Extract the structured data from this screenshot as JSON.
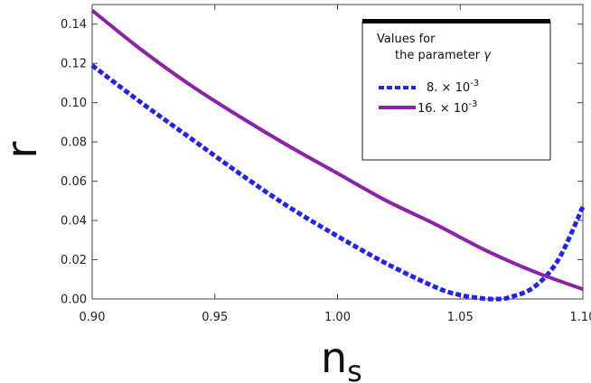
{
  "chart_data": {
    "type": "line",
    "title": "",
    "xlabel": "n",
    "xlabel_sub": "s",
    "ylabel": "r",
    "xlim": [
      0.9,
      1.1
    ],
    "ylim": [
      0.0,
      0.15
    ],
    "xticks": [
      "0.90",
      "0.95",
      "1.00",
      "1.05",
      "1.10"
    ],
    "xtick_values": [
      0.9,
      0.95,
      1.0,
      1.05,
      1.1
    ],
    "yticks": [
      "0.00",
      "0.02",
      "0.04",
      "0.06",
      "0.08",
      "0.10",
      "0.12",
      "0.14"
    ],
    "ytick_values": [
      0.0,
      0.02,
      0.04,
      0.06,
      0.08,
      0.1,
      0.12,
      0.14
    ],
    "legend": {
      "title_line1": "Values for",
      "title_line2": "the parameter",
      "title_symbol": "γ",
      "placement": "top-right"
    },
    "series": [
      {
        "name": "8. × 10^-3",
        "label_main": "8. ×",
        "label_base": "10",
        "label_exp": "-3",
        "style": "dashed",
        "color": "#2222ee",
        "x": [
          0.9,
          0.92,
          0.94,
          0.96,
          0.98,
          1.0,
          1.02,
          1.04,
          1.05,
          1.06,
          1.065,
          1.07,
          1.08,
          1.09,
          1.1
        ],
        "y": [
          0.119,
          0.1,
          0.082,
          0.064,
          0.047,
          0.032,
          0.018,
          0.006,
          0.002,
          0.0002,
          0.0,
          0.0008,
          0.006,
          0.02,
          0.047
        ]
      },
      {
        "name": "16. × 10^-3",
        "label_main": "16. ×",
        "label_base": "10",
        "label_exp": "-3",
        "style": "solid",
        "color": "#8b22a8",
        "x": [
          0.9,
          0.92,
          0.94,
          0.96,
          0.98,
          1.0,
          1.02,
          1.04,
          1.06,
          1.08,
          1.1
        ],
        "y": [
          0.147,
          0.127,
          0.109,
          0.093,
          0.078,
          0.064,
          0.05,
          0.038,
          0.025,
          0.014,
          0.005
        ]
      }
    ]
  }
}
